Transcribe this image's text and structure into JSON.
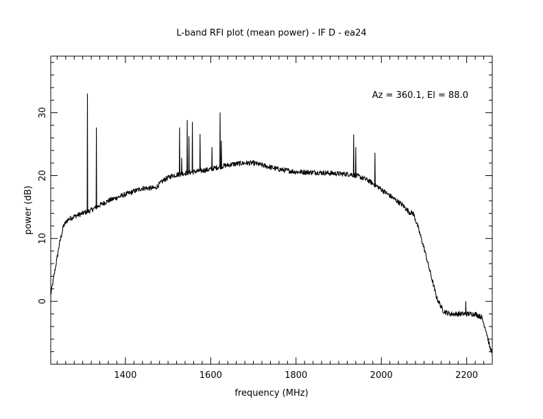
{
  "chart_data": {
    "type": "line",
    "title": "L-band RFI plot (mean power) - IF D - ea24",
    "xlabel": "frequency (MHz)",
    "ylabel": "power (dB)",
    "annotation": "Az = 360.1, El = 88.0",
    "xlim": [
      1225,
      2260
    ],
    "ylim": [
      -10,
      39
    ],
    "x_ticks": [
      1400,
      1600,
      1800,
      2000,
      2200
    ],
    "y_ticks": [
      0,
      10,
      20,
      30
    ],
    "x_minor_step": 20,
    "y_minor_step": 2,
    "grid": false,
    "line_color": "#000000",
    "series": [
      {
        "baseline": [
          [
            1225,
            1
          ],
          [
            1235,
            5
          ],
          [
            1245,
            9
          ],
          [
            1255,
            12
          ],
          [
            1265,
            13
          ],
          [
            1280,
            13.5
          ],
          [
            1300,
            14
          ],
          [
            1320,
            14.5
          ],
          [
            1340,
            15.3
          ],
          [
            1360,
            16
          ],
          [
            1380,
            16.5
          ],
          [
            1400,
            17
          ],
          [
            1420,
            17.5
          ],
          [
            1440,
            18
          ],
          [
            1460,
            18
          ],
          [
            1470,
            18
          ],
          [
            1490,
            19.3
          ],
          [
            1510,
            20
          ],
          [
            1540,
            20.4
          ],
          [
            1560,
            20.6
          ],
          [
            1580,
            20.8
          ],
          [
            1600,
            21
          ],
          [
            1620,
            21.4
          ],
          [
            1650,
            21.8
          ],
          [
            1680,
            22
          ],
          [
            1700,
            22
          ],
          [
            1730,
            21.5
          ],
          [
            1760,
            21
          ],
          [
            1780,
            20.8
          ],
          [
            1800,
            20.6
          ],
          [
            1850,
            20.5
          ],
          [
            1900,
            20.3
          ],
          [
            1930,
            20.2
          ],
          [
            1950,
            19.8
          ],
          [
            1970,
            19.2
          ],
          [
            1990,
            18.3
          ],
          [
            2010,
            17.3
          ],
          [
            2030,
            16.3
          ],
          [
            2050,
            15.3
          ],
          [
            2065,
            14.2
          ],
          [
            2075,
            14
          ],
          [
            2085,
            12
          ],
          [
            2100,
            8.5
          ],
          [
            2115,
            4.5
          ],
          [
            2130,
            0.5
          ],
          [
            2145,
            -1.5
          ],
          [
            2160,
            -2
          ],
          [
            2180,
            -2
          ],
          [
            2200,
            -2
          ],
          [
            2220,
            -2
          ],
          [
            2235,
            -2.5
          ],
          [
            2245,
            -4.5
          ],
          [
            2255,
            -7.5
          ],
          [
            2260,
            -8
          ]
        ],
        "spikes": [
          [
            1311,
            33
          ],
          [
            1332,
            27.6
          ],
          [
            1527,
            27.6
          ],
          [
            1532,
            22.8
          ],
          [
            1545,
            28.8
          ],
          [
            1549,
            26.2
          ],
          [
            1557,
            28.5
          ],
          [
            1575,
            26.6
          ],
          [
            1603,
            24.5
          ],
          [
            1622,
            30
          ],
          [
            1625,
            25.5
          ],
          [
            1935,
            26.5
          ],
          [
            1940,
            24.5
          ],
          [
            1985,
            23.6
          ],
          [
            2198,
            0
          ]
        ]
      }
    ]
  }
}
